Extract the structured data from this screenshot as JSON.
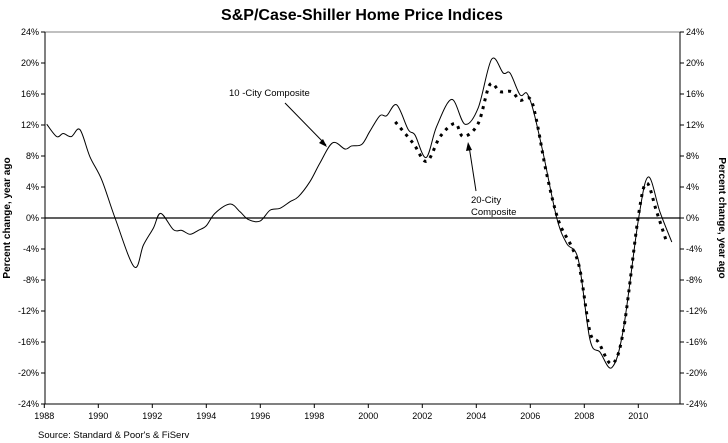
{
  "chart_data": {
    "type": "line",
    "title": "S&P/Case-Shiller Home Price Indices",
    "ylabel_left": "Percent change, year ago",
    "ylabel_right": "Percent change, year ago",
    "xlabel": "",
    "source": "Source: Standard & Poor's & FiServ",
    "xlim": [
      1988,
      2011.75
    ],
    "ylim": [
      -24,
      24
    ],
    "x_ticks": [
      1988,
      1990,
      1992,
      1994,
      1996,
      1998,
      2000,
      2002,
      2004,
      2006,
      2008,
      2010
    ],
    "x_tick_labels": [
      "1988",
      "1990",
      "1992",
      "1994",
      "1996",
      "1998",
      "2000",
      "2002",
      "2004",
      "2006",
      "2008",
      "2010"
    ],
    "y_ticks": [
      24,
      20,
      16,
      12,
      8,
      4,
      0,
      -4,
      -8,
      -12,
      -16,
      -20,
      -24
    ],
    "y_tick_labels": [
      "24%",
      "20%",
      "16%",
      "12%",
      "8%",
      "4%",
      "0%",
      "-4%",
      "-8%",
      "-12%",
      "-16%",
      "-20%",
      "-24%"
    ],
    "grid": false,
    "annotations": [
      {
        "text": "10 -City Composite",
        "series": "10-City Composite"
      },
      {
        "text": "20-City",
        "text2": "Composite",
        "series": "20-City Composite"
      }
    ],
    "series": [
      {
        "name": "10-City Composite",
        "style": "solid",
        "color": "#000000",
        "x": [
          1988.09,
          1988.46,
          1988.7,
          1989.0,
          1989.32,
          1989.69,
          1990.13,
          1990.62,
          1991.33,
          1991.67,
          1992.04,
          1992.31,
          1992.78,
          1993.09,
          1993.4,
          1993.7,
          1994.0,
          1994.32,
          1994.88,
          1995.25,
          1995.56,
          1995.99,
          1996.36,
          1996.73,
          1997.1,
          1997.41,
          1997.84,
          1998.21,
          1998.68,
          1999.14,
          1999.38,
          1999.76,
          2000.06,
          2000.43,
          2000.68,
          2001.05,
          2001.48,
          2001.73,
          2002.14,
          2002.53,
          2003.09,
          2003.58,
          2004.07,
          2004.57,
          2005.0,
          2005.25,
          2005.62,
          2005.87,
          2006.11,
          2006.48,
          2006.98,
          2007.35,
          2007.78,
          2008.21,
          2008.58,
          2009.02,
          2009.44,
          2010.0,
          2010.37,
          2010.8,
          2011.24
        ],
        "y": [
          12.1,
          10.5,
          10.9,
          10.5,
          11.4,
          7.9,
          4.9,
          0.0,
          -6.3,
          -3.5,
          -1.3,
          0.6,
          -1.5,
          -1.6,
          -2.1,
          -1.6,
          -1.0,
          0.6,
          1.8,
          0.8,
          -0.2,
          -0.4,
          1.0,
          1.25,
          2.1,
          2.75,
          4.7,
          7.1,
          9.7,
          8.9,
          9.3,
          9.5,
          11.2,
          13.2,
          13.2,
          14.6,
          11.4,
          10.7,
          7.8,
          11.8,
          15.3,
          12.1,
          14.2,
          20.5,
          18.7,
          18.7,
          15.9,
          16.1,
          13.9,
          8.3,
          0.0,
          -3.3,
          -5.4,
          -15.7,
          -17.3,
          -19.3,
          -14.5,
          -0.3,
          5.3,
          0.8,
          -3.1
        ]
      },
      {
        "name": "20-City Composite",
        "style": "dashed",
        "color": "#000000",
        "x": [
          2001.0,
          2001.67,
          2002.16,
          2002.66,
          2003.21,
          2003.52,
          2004.07,
          2004.5,
          2004.88,
          2005.31,
          2005.62,
          2005.99,
          2006.23,
          2006.6,
          2007.04,
          2007.53,
          2007.84,
          2008.21,
          2008.52,
          2009.02,
          2009.44,
          2010.0,
          2010.31,
          2010.68,
          2011.05
        ],
        "y": [
          12.4,
          9.6,
          7.3,
          10.5,
          12.2,
          10.5,
          12.2,
          17.2,
          16.3,
          16.3,
          15.2,
          15.4,
          12.6,
          5.8,
          -0.3,
          -3.7,
          -6.7,
          -14.7,
          -16.0,
          -18.8,
          -14.7,
          0.2,
          4.5,
          0.8,
          -3.1
        ]
      }
    ]
  }
}
